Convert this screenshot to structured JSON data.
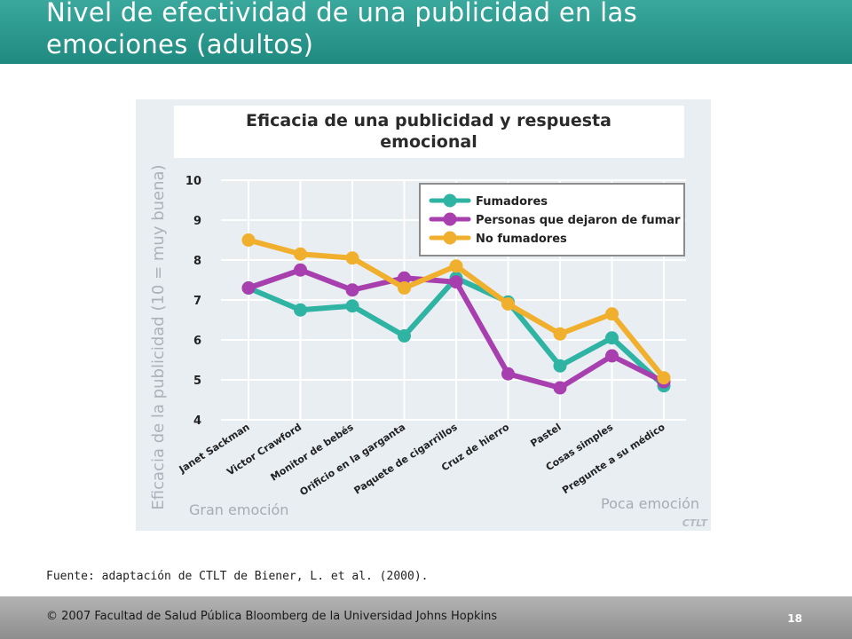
{
  "slide": {
    "title_line1": "Nivel de efectividad de una publicidad en las",
    "title_line2": "emociones (adultos)",
    "source": "Fuente: adaptación de CTLT de Biener, L. et al. (2000).",
    "footer": "  2007 Facultad de Salud Pública Bloomberg de la Universidad Johns Hopkins",
    "copyright_symbol": "©",
    "page_number": "18"
  },
  "chart_data": {
    "type": "line",
    "title_line1": "Eficacia de una publicidad y respuesta",
    "title_line2": "emocional",
    "ylabel": "Eficacia de la publicidad (10 = muy buena)",
    "ylim": [
      4,
      10
    ],
    "yticks": [
      "10",
      "9",
      "8",
      "7",
      "6",
      "5",
      "4"
    ],
    "categories": [
      "Janet Sackman",
      "Victor Crawford",
      "Monitor de bebés",
      "Orificio en la garganta",
      "Paquete de cigarrillos",
      "Cruz de hierro",
      "Pastel",
      "Cosas simples",
      "Pregunte a su médico"
    ],
    "series": [
      {
        "name": "Fumadores",
        "color": "#2fb3a3",
        "values": [
          7.3,
          6.75,
          6.85,
          6.1,
          7.55,
          6.95,
          5.35,
          6.05,
          4.85
        ]
      },
      {
        "name": "Personas que dejaron de fumar",
        "color": "#a83fae",
        "values": [
          7.3,
          7.75,
          7.25,
          7.55,
          7.45,
          5.15,
          4.8,
          5.6,
          4.95
        ]
      },
      {
        "name": "No fumadores",
        "color": "#f0b02e",
        "values": [
          8.5,
          8.15,
          8.05,
          7.3,
          7.85,
          6.9,
          6.15,
          6.65,
          5.05
        ]
      }
    ],
    "grid": true,
    "legend_position": "top-right",
    "annotation_left": "Gran emoción",
    "annotation_right": "Poca emoción",
    "watermark": "CTLT"
  }
}
